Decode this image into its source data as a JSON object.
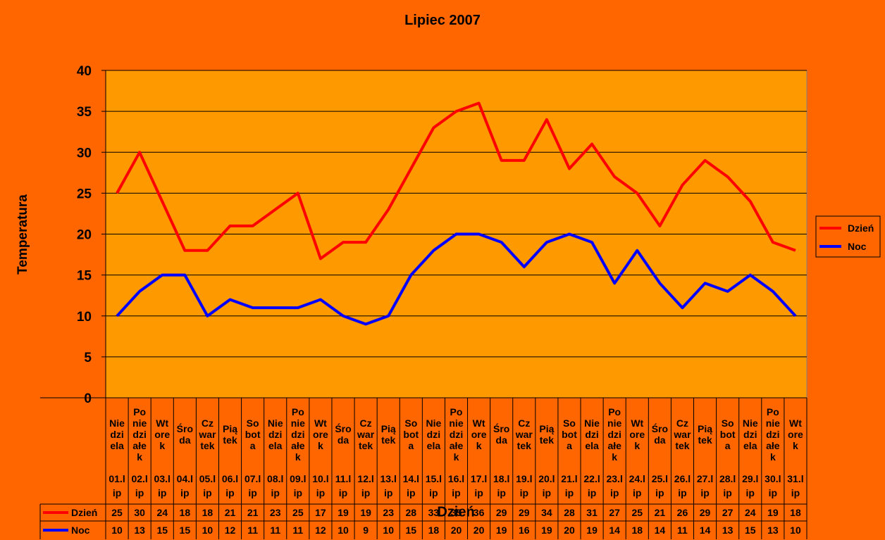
{
  "chart_data": {
    "type": "line",
    "title": "Lipiec 2007",
    "xlabel": "Dzień",
    "ylabel": "Temperatura",
    "ylim": [
      0,
      40
    ],
    "ystep": 5,
    "grid": true,
    "legend_position": "right",
    "colors": {
      "background": "#FF6600",
      "plot_area": "#FF9900"
    },
    "categories": [
      {
        "day": "Niedziela",
        "date": "01.lip",
        "day_lines": [
          "Nie",
          "dzi",
          "ela"
        ],
        "date_lines": [
          "01.l",
          "ip"
        ]
      },
      {
        "day": "Poniedziałek",
        "date": "02.lip",
        "day_lines": [
          "Po",
          "nie",
          "dzi",
          "ałe",
          "k"
        ],
        "date_lines": [
          "02.l",
          "ip"
        ]
      },
      {
        "day": "Wtorek",
        "date": "03.lip",
        "day_lines": [
          "Wt",
          "ore",
          "k"
        ],
        "date_lines": [
          "03.l",
          "ip"
        ]
      },
      {
        "day": "Środa",
        "date": "04.lip",
        "day_lines": [
          "Śro",
          "da"
        ],
        "date_lines": [
          "04.l",
          "ip"
        ]
      },
      {
        "day": "Czwartek",
        "date": "05.lip",
        "day_lines": [
          "Cz",
          "war",
          "tek"
        ],
        "date_lines": [
          "05.l",
          "ip"
        ]
      },
      {
        "day": "Piątek",
        "date": "06.lip",
        "day_lines": [
          "Pią",
          "tek"
        ],
        "date_lines": [
          "06.l",
          "ip"
        ]
      },
      {
        "day": "Sobota",
        "date": "07.lip",
        "day_lines": [
          "So",
          "bot",
          "a"
        ],
        "date_lines": [
          "07.l",
          "ip"
        ]
      },
      {
        "day": "Niedziela",
        "date": "08.lip",
        "day_lines": [
          "Nie",
          "dzi",
          "ela"
        ],
        "date_lines": [
          "08.l",
          "ip"
        ]
      },
      {
        "day": "Poniedziałek",
        "date": "09.lip",
        "day_lines": [
          "Po",
          "nie",
          "dzi",
          "ałe",
          "k"
        ],
        "date_lines": [
          "09.l",
          "ip"
        ]
      },
      {
        "day": "Wtorek",
        "date": "10.lip",
        "day_lines": [
          "Wt",
          "ore",
          "k"
        ],
        "date_lines": [
          "10.l",
          "ip"
        ]
      },
      {
        "day": "Środa",
        "date": "11.lip",
        "day_lines": [
          "Śro",
          "da"
        ],
        "date_lines": [
          "11.l",
          "ip"
        ]
      },
      {
        "day": "Czwartek",
        "date": "12.lip",
        "day_lines": [
          "Cz",
          "war",
          "tek"
        ],
        "date_lines": [
          "12.l",
          "ip"
        ]
      },
      {
        "day": "Piątek",
        "date": "13.lip",
        "day_lines": [
          "Pią",
          "tek"
        ],
        "date_lines": [
          "13.l",
          "ip"
        ]
      },
      {
        "day": "Sobota",
        "date": "14.lip",
        "day_lines": [
          "So",
          "bot",
          "a"
        ],
        "date_lines": [
          "14.l",
          "ip"
        ]
      },
      {
        "day": "Niedziela",
        "date": "15.lip",
        "day_lines": [
          "Nie",
          "dzi",
          "ela"
        ],
        "date_lines": [
          "15.l",
          "ip"
        ]
      },
      {
        "day": "Poniedziałek",
        "date": "16.lip",
        "day_lines": [
          "Po",
          "nie",
          "dzi",
          "ałe",
          "k"
        ],
        "date_lines": [
          "16.l",
          "ip"
        ]
      },
      {
        "day": "Wtorek",
        "date": "17.lip",
        "day_lines": [
          "Wt",
          "ore",
          "k"
        ],
        "date_lines": [
          "17.l",
          "ip"
        ]
      },
      {
        "day": "Środa",
        "date": "18.lip",
        "day_lines": [
          "Śro",
          "da"
        ],
        "date_lines": [
          "18.l",
          "ip"
        ]
      },
      {
        "day": "Czwartek",
        "date": "19.lip",
        "day_lines": [
          "Cz",
          "war",
          "tek"
        ],
        "date_lines": [
          "19.l",
          "ip"
        ]
      },
      {
        "day": "Piątek",
        "date": "20.lip",
        "day_lines": [
          "Pią",
          "tek"
        ],
        "date_lines": [
          "20.l",
          "ip"
        ]
      },
      {
        "day": "Sobota",
        "date": "21.lip",
        "day_lines": [
          "So",
          "bot",
          "a"
        ],
        "date_lines": [
          "21.l",
          "ip"
        ]
      },
      {
        "day": "Niedziela",
        "date": "22.lip",
        "day_lines": [
          "Nie",
          "dzi",
          "ela"
        ],
        "date_lines": [
          "22.l",
          "ip"
        ]
      },
      {
        "day": "Poniedziałek",
        "date": "23.lip",
        "day_lines": [
          "Po",
          "nie",
          "dzi",
          "ałe",
          "k"
        ],
        "date_lines": [
          "23.l",
          "ip"
        ]
      },
      {
        "day": "Wtorek",
        "date": "24.lip",
        "day_lines": [
          "Wt",
          "ore",
          "k"
        ],
        "date_lines": [
          "24.l",
          "ip"
        ]
      },
      {
        "day": "Środa",
        "date": "25.lip",
        "day_lines": [
          "Śro",
          "da"
        ],
        "date_lines": [
          "25.l",
          "ip"
        ]
      },
      {
        "day": "Czwartek",
        "date": "26.lip",
        "day_lines": [
          "Cz",
          "war",
          "tek"
        ],
        "date_lines": [
          "26.l",
          "ip"
        ]
      },
      {
        "day": "Piątek",
        "date": "27.lip",
        "day_lines": [
          "Pią",
          "tek"
        ],
        "date_lines": [
          "27.l",
          "ip"
        ]
      },
      {
        "day": "Sobota",
        "date": "28.lip",
        "day_lines": [
          "So",
          "bot",
          "a"
        ],
        "date_lines": [
          "28.l",
          "ip"
        ]
      },
      {
        "day": "Niedziela",
        "date": "29.lip",
        "day_lines": [
          "Nie",
          "dzi",
          "ela"
        ],
        "date_lines": [
          "29.l",
          "ip"
        ]
      },
      {
        "day": "Poniedziałek",
        "date": "30.lip",
        "day_lines": [
          "Po",
          "nie",
          "dzi",
          "ałe",
          "k"
        ],
        "date_lines": [
          "30.l",
          "ip"
        ]
      },
      {
        "day": "Wtorek",
        "date": "31.lip",
        "day_lines": [
          "Wt",
          "ore",
          "k"
        ],
        "date_lines": [
          "31.l",
          "ip"
        ]
      }
    ],
    "series": [
      {
        "name": "Dzień",
        "color": "#FF0000",
        "values": [
          25,
          30,
          24,
          18,
          18,
          21,
          21,
          23,
          25,
          17,
          19,
          19,
          23,
          28,
          33,
          35,
          36,
          29,
          29,
          34,
          28,
          31,
          27,
          25,
          21,
          26,
          29,
          27,
          24,
          19,
          18
        ]
      },
      {
        "name": "Noc",
        "color": "#0000FF",
        "values": [
          10,
          13,
          15,
          15,
          10,
          12,
          11,
          11,
          11,
          12,
          10,
          9,
          10,
          15,
          18,
          20,
          20,
          19,
          16,
          19,
          20,
          19,
          14,
          18,
          14,
          11,
          14,
          13,
          15,
          13,
          10
        ]
      }
    ]
  }
}
